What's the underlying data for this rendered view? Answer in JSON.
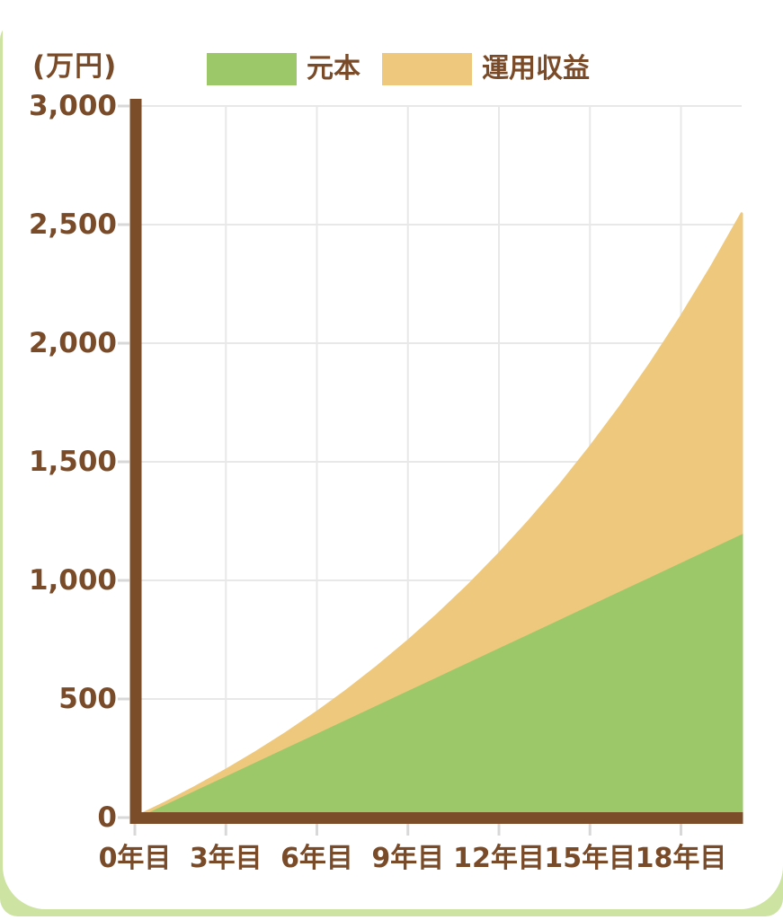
{
  "chart_data": {
    "type": "area",
    "stacked": true,
    "title": "",
    "unit_label": "(万円)",
    "xlim": [
      0,
      20
    ],
    "ylim": [
      0,
      3000
    ],
    "grid": true,
    "legend_position": "top",
    "years": [
      0,
      1,
      2,
      3,
      4,
      5,
      6,
      7,
      8,
      9,
      10,
      11,
      12,
      13,
      14,
      15,
      16,
      17,
      18,
      19,
      20
    ],
    "x_ticks": [
      {
        "year": 0,
        "label": "0年目"
      },
      {
        "year": 3,
        "label": "3年目"
      },
      {
        "year": 6,
        "label": "6年目"
      },
      {
        "year": 9,
        "label": "9年目"
      },
      {
        "year": 12,
        "label": "12年目"
      },
      {
        "year": 15,
        "label": "15年目"
      },
      {
        "year": 18,
        "label": "18年目"
      }
    ],
    "y_ticks": [
      {
        "value": 0,
        "label": "0"
      },
      {
        "value": 500,
        "label": "500"
      },
      {
        "value": 1000,
        "label": "1,000"
      },
      {
        "value": 1500,
        "label": "1,500"
      },
      {
        "value": 2000,
        "label": "2,000"
      },
      {
        "value": 2500,
        "label": "2,500"
      },
      {
        "value": 3000,
        "label": "3,000"
      }
    ],
    "series": [
      {
        "name": "元本",
        "color": "#9dc869",
        "values": [
          0,
          60,
          120,
          180,
          240,
          300,
          360,
          420,
          480,
          540,
          600,
          660,
          720,
          780,
          840,
          900,
          960,
          1020,
          1080,
          1140,
          1200
        ]
      },
      {
        "name": "運用収益",
        "color": "#edc87d",
        "values": [
          0,
          2,
          9,
          20,
          36,
          57,
          84,
          117,
          157,
          204,
          258,
          320,
          391,
          471,
          560,
          661,
          772,
          895,
          1031,
          1181,
          1346
        ]
      }
    ],
    "totals": [
      0,
      62,
      129,
      200,
      276,
      357,
      444,
      537,
      637,
      744,
      858,
      980,
      1111,
      1251,
      1400,
      1561,
      1732,
      1915,
      2111,
      2321,
      2546
    ]
  },
  "theme": {
    "text_color": "#7a4b28",
    "axis_color": "#7b4e29",
    "grid_color": "#e8e8e8",
    "tick_color": "#d8d8d8",
    "card_bg": "#ffffff",
    "page_bg": "#cce3a2"
  }
}
